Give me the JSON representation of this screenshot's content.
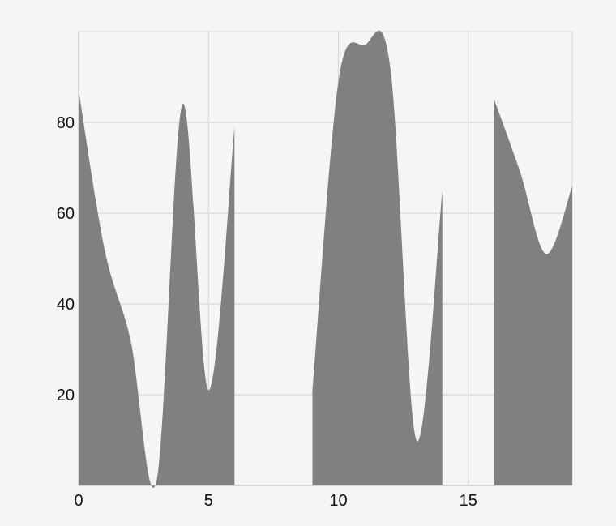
{
  "chart_data": {
    "type": "area",
    "title": "",
    "xlabel": "",
    "ylabel": "",
    "xlim": [
      0,
      19
    ],
    "ylim": [
      0,
      100
    ],
    "x_ticks": [
      0,
      5,
      10,
      15
    ],
    "y_ticks": [
      20,
      40,
      60,
      80
    ],
    "grid": true,
    "legend": "none",
    "colors": {
      "fill": "#808080",
      "grid": "#d3d3d3",
      "background": "#f5f5f5",
      "axis": "#bbbbbb"
    },
    "series": [
      {
        "segments": [
          {
            "points": [
              [
                0,
                87
              ],
              [
                1,
                52
              ],
              [
                2,
                32
              ],
              [
                3,
                1
              ],
              [
                4,
                84
              ],
              [
                5,
                21
              ],
              [
                6,
                79
              ]
            ]
          },
          {
            "points": [
              [
                9,
                21
              ],
              [
                10,
                89
              ],
              [
                11,
                97
              ],
              [
                12,
                92
              ],
              [
                13,
                10
              ],
              [
                14,
                65
              ]
            ]
          },
          {
            "points": [
              [
                16,
                85
              ],
              [
                17,
                69
              ],
              [
                18,
                51
              ],
              [
                19,
                66
              ]
            ]
          }
        ]
      }
    ]
  }
}
